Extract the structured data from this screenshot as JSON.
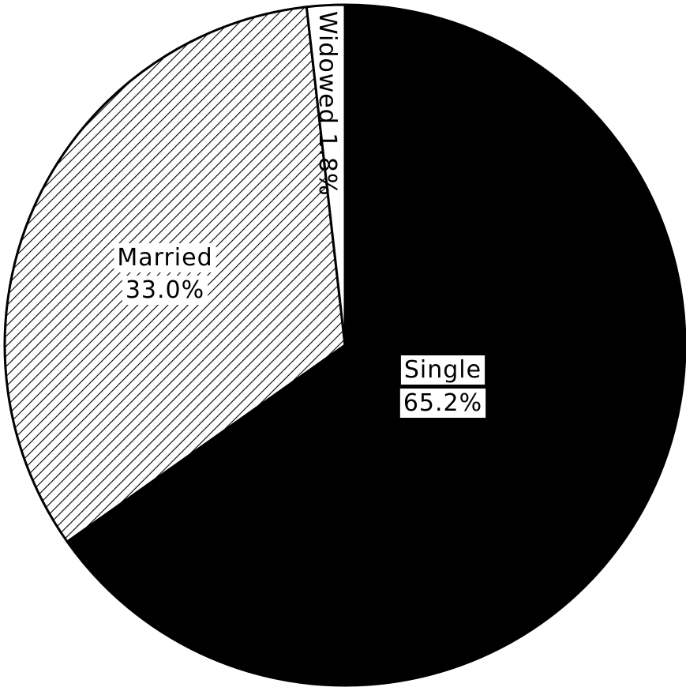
{
  "chart_data": {
    "type": "pie",
    "title": "",
    "slices": [
      {
        "name": "Single",
        "percent_label": "65.2%",
        "value": 65.2,
        "fill": "#000000",
        "pattern": "solid"
      },
      {
        "name": "Married",
        "percent_label": "33.0%",
        "value": 33.0,
        "fill": "#ffffff",
        "pattern": "diagonal-hatch"
      },
      {
        "name": "Widowed",
        "percent_label": "1.8%",
        "value": 1.8,
        "fill": "#ffffff",
        "pattern": "none"
      }
    ],
    "start": "12 o'clock",
    "direction": "clockwise",
    "legend": "none"
  }
}
